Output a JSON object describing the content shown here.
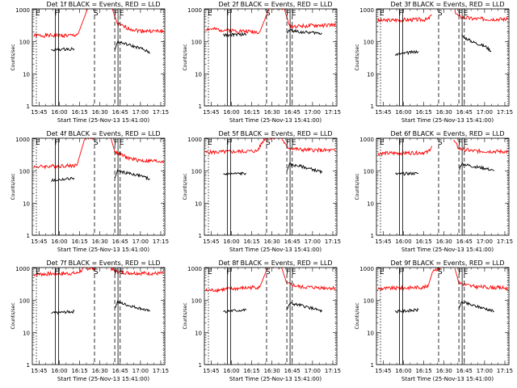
{
  "chart_data": [
    {
      "type": "line",
      "title": "Det 1f BLACK = Events, RED = LLD",
      "xlabel": "Start Time (25-Nov-13 15:41:00)",
      "ylabel": "Counts/sec",
      "xticks": [
        "15:45",
        "16:00",
        "16:15",
        "16:30",
        "16:45",
        "17:00",
        "17:15"
      ],
      "yticks": [
        "1",
        "10",
        "100",
        "1000"
      ],
      "xlim_min": [
        -1,
        97
      ],
      "ylim": [
        1,
        1000
      ],
      "yscale": "log",
      "markers": [
        "E",
        "F",
        "S",
        "F",
        "E"
      ],
      "series": [
        {
          "color": "#ff0000",
          "segments": [
            {
              "x": [
                0,
                30
              ],
              "y": [
                155,
                155
              ],
              "x_label": [
                "15:41",
                "16:11"
              ]
            },
            {
              "x": [
                30,
                33,
                40,
                46
              ],
              "y": [
                155,
                180,
                1100,
                1100
              ]
            },
            {
              "x": [
                58,
                62,
                70,
                78,
                96
              ],
              "y": [
                1100,
                350,
                260,
                220,
                210
              ]
            }
          ]
        },
        {
          "color": "#000000",
          "segments": [
            {
              "x": [
                13,
                30
              ],
              "y": [
                55,
                60
              ]
            },
            {
              "x": [
                60,
                62,
                70,
                80,
                86
              ],
              "y": [
                55,
                100,
                80,
                60,
                45
              ]
            }
          ]
        }
      ]
    },
    {
      "type": "line",
      "title": "Det 2f BLACK = Events, RED = LLD",
      "xlabel": "Start Time (25-Nov-13 15:41:00)",
      "ylabel": "Counts/sec",
      "xticks": [
        "15:45",
        "16:00",
        "16:15",
        "16:30",
        "16:45",
        "17:00",
        "17:15"
      ],
      "yticks": [
        "1",
        "10",
        "100",
        "1000"
      ],
      "xlim_min": [
        -1,
        97
      ],
      "ylim": [
        1,
        1000
      ],
      "yscale": "log",
      "markers": [
        "E",
        "F",
        "S",
        "F",
        "E"
      ],
      "series": [
        {
          "color": "#ff0000",
          "segments": [
            {
              "x": [
                0,
                40,
                47,
                58,
                62,
                96
              ],
              "y": [
                250,
                200,
                1100,
                1100,
                300,
                330
              ]
            }
          ]
        },
        {
          "color": "#000000",
          "segments": [
            {
              "x": [
                13,
                30
              ],
              "y": [
                160,
                170
              ]
            },
            {
              "x": [
                60,
                62,
                70,
                80,
                86
              ],
              "y": [
                180,
                230,
                200,
                190,
                180
              ]
            }
          ]
        }
      ]
    },
    {
      "type": "line",
      "title": "Det 3f BLACK = Events, RED = LLD",
      "xlabel": "Start Time (25-Nov-13 15:41:00)",
      "ylabel": "Counts/sec",
      "xticks": [
        "15:45",
        "16:00",
        "16:15",
        "16:30",
        "16:45",
        "17:00",
        "17:15"
      ],
      "yticks": [
        "1",
        "10",
        "100",
        "1000"
      ],
      "xlim_min": [
        -1,
        97
      ],
      "ylim": [
        1,
        1000
      ],
      "yscale": "log",
      "markers": [
        "E",
        "F",
        "S",
        "F",
        "E"
      ],
      "series": [
        {
          "color": "#ff0000",
          "segments": [
            {
              "x": [
                0,
                20,
                37,
                40
              ],
              "y": [
                450,
                480,
                490,
                700
              ]
            },
            {
              "x": [
                57,
                60,
                70,
                96
              ],
              "y": [
                900,
                600,
                520,
                500
              ]
            }
          ]
        },
        {
          "color": "#000000",
          "segments": [
            {
              "x": [
                13,
                30
              ],
              "y": [
                40,
                50
              ]
            },
            {
              "x": [
                62,
                70,
                80,
                84
              ],
              "y": [
                150,
                100,
                70,
                50
              ]
            }
          ]
        }
      ]
    },
    {
      "type": "line",
      "title": "Det 4f BLACK = Events, RED = LLD",
      "xlabel": "Start Time (25-Nov-13 15:41:00)",
      "ylabel": "Counts/sec",
      "xticks": [
        "15:45",
        "16:00",
        "16:15",
        "16:30",
        "16:45",
        "17:00",
        "17:15"
      ],
      "yticks": [
        "1",
        "10",
        "100",
        "1000"
      ],
      "xlim_min": [
        -1,
        97
      ],
      "ylim": [
        1,
        1000
      ],
      "yscale": "log",
      "markers": [
        "E",
        "F",
        "S",
        "F",
        "E"
      ],
      "series": [
        {
          "color": "#ff0000",
          "segments": [
            {
              "x": [
                0,
                32,
                38,
                46
              ],
              "y": [
                135,
                150,
                1100,
                1100
              ]
            },
            {
              "x": [
                57,
                60,
                70,
                80,
                96
              ],
              "y": [
                1100,
                400,
                250,
                210,
                200
              ]
            }
          ]
        },
        {
          "color": "#000000",
          "segments": [
            {
              "x": [
                13,
                30
              ],
              "y": [
                50,
                60
              ]
            },
            {
              "x": [
                60,
                62,
                70,
                80,
                86
              ],
              "y": [
                60,
                100,
                85,
                70,
                55
              ]
            }
          ]
        }
      ]
    },
    {
      "type": "line",
      "title": "Det 5f BLACK = Events, RED = LLD",
      "xlabel": "Start Time (25-Nov-13 15:41:00)",
      "ylabel": "Counts/sec",
      "xticks": [
        "15:45",
        "16:00",
        "16:15",
        "16:30",
        "16:45",
        "17:00",
        "17:15"
      ],
      "yticks": [
        "1",
        "10",
        "100",
        "1000"
      ],
      "xlim_min": [
        -1,
        97
      ],
      "ylim": [
        1,
        1000
      ],
      "yscale": "log",
      "markers": [
        "E",
        "F",
        "S",
        "F",
        "E"
      ],
      "series": [
        {
          "color": "#ff0000",
          "segments": [
            {
              "x": [
                0,
                38,
                44,
                56
              ],
              "y": [
                380,
                420,
                1100,
                1100
              ]
            },
            {
              "x": [
                56,
                60,
                70,
                96
              ],
              "y": [
                1100,
                550,
                460,
                430
              ]
            }
          ]
        },
        {
          "color": "#000000",
          "segments": [
            {
              "x": [
                13,
                30
              ],
              "y": [
                80,
                85
              ]
            },
            {
              "x": [
                60,
                62,
                70,
                80,
                86
              ],
              "y": [
                100,
                160,
                140,
                110,
                90
              ]
            }
          ]
        }
      ]
    },
    {
      "type": "line",
      "title": "Det 6f BLACK = Events, RED = LLD",
      "xlabel": "Start Time (25-Nov-13 15:41:00)",
      "ylabel": "Counts/sec",
      "xticks": [
        "15:45",
        "16:00",
        "16:15",
        "16:30",
        "16:45",
        "17:00",
        "17:15"
      ],
      "yticks": [
        "1",
        "10",
        "100",
        "1000"
      ],
      "xlim_min": [
        -1,
        97
      ],
      "ylim": [
        1,
        1000
      ],
      "yscale": "log",
      "markers": [
        "E",
        "F",
        "S",
        "F",
        "E"
      ],
      "series": [
        {
          "color": "#ff0000",
          "segments": [
            {
              "x": [
                0,
                37,
                40
              ],
              "y": [
                350,
                380,
                600
              ]
            },
            {
              "x": [
                56,
                60,
                70,
                96
              ],
              "y": [
                900,
                500,
                420,
                400
              ]
            }
          ]
        },
        {
          "color": "#000000",
          "segments": [
            {
              "x": [
                13,
                30
              ],
              "y": [
                80,
                85
              ]
            },
            {
              "x": [
                60,
                62,
                70,
                80,
                86
              ],
              "y": [
                110,
                170,
                140,
                120,
                100
              ]
            }
          ]
        }
      ]
    },
    {
      "type": "line",
      "title": "Det 7f BLACK = Events, RED = LLD",
      "xlabel": "Start Time (25-Nov-13 15:41:00)",
      "ylabel": "Counts/sec",
      "xticks": [
        "15:45",
        "16:00",
        "16:15",
        "16:30",
        "16:45",
        "17:00",
        "17:15"
      ],
      "yticks": [
        "1",
        "10",
        "100",
        "1000"
      ],
      "xlim_min": [
        -1,
        97
      ],
      "ylim": [
        1,
        1000
      ],
      "yscale": "log",
      "markers": [
        "E",
        "F",
        "S",
        "F",
        "E"
      ],
      "series": [
        {
          "color": "#ff0000",
          "segments": [
            {
              "x": [
                0,
                32,
                38,
                46
              ],
              "y": [
                650,
                700,
                1000,
                1000
              ]
            },
            {
              "x": [
                57,
                60,
                70,
                96
              ],
              "y": [
                1000,
                800,
                720,
                680
              ]
            }
          ]
        },
        {
          "color": "#000000",
          "segments": [
            {
              "x": [
                13,
                30
              ],
              "y": [
                40,
                45
              ]
            },
            {
              "x": [
                60,
                62,
                70,
                80,
                86
              ],
              "y": [
                60,
                90,
                70,
                55,
                45
              ]
            }
          ]
        }
      ]
    },
    {
      "type": "line",
      "title": "Det 8f BLACK = Events, RED = LLD",
      "xlabel": "Start Time (25-Nov-13 15:41:00)",
      "ylabel": "Counts/sec",
      "xticks": [
        "15:45",
        "16:00",
        "16:15",
        "16:30",
        "16:45",
        "17:00",
        "17:15"
      ],
      "yticks": [
        "1",
        "10",
        "100",
        "1000"
      ],
      "xlim_min": [
        -1,
        97
      ],
      "ylim": [
        1,
        1000
      ],
      "yscale": "log",
      "markers": [
        "E",
        "F",
        "S",
        "F",
        "E"
      ],
      "series": [
        {
          "color": "#ff0000",
          "segments": [
            {
              "x": [
                0,
                40,
                46,
                56
              ],
              "y": [
                200,
                260,
                1100,
                1100
              ]
            },
            {
              "x": [
                56,
                60,
                70,
                96
              ],
              "y": [
                1100,
                330,
                260,
                240
              ]
            }
          ]
        },
        {
          "color": "#000000",
          "segments": [
            {
              "x": [
                13,
                30
              ],
              "y": [
                45,
                50
              ]
            },
            {
              "x": [
                60,
                62,
                70,
                80,
                86
              ],
              "y": [
                50,
                80,
                70,
                55,
                45
              ]
            }
          ]
        }
      ]
    },
    {
      "type": "line",
      "title": "Det 9f BLACK = Events, RED = LLD",
      "xlabel": "Start Time (25-Nov-13 15:41:00)",
      "ylabel": "Counts/sec",
      "xticks": [
        "15:45",
        "16:00",
        "16:15",
        "16:30",
        "16:45",
        "17:00",
        "17:15"
      ],
      "yticks": [
        "1",
        "10",
        "100",
        "1000"
      ],
      "xlim_min": [
        -1,
        97
      ],
      "ylim": [
        1,
        1000
      ],
      "yscale": "log",
      "markers": [
        "E",
        "F",
        "S",
        "F",
        "E"
      ],
      "series": [
        {
          "color": "#ff0000",
          "segments": [
            {
              "x": [
                0,
                37,
                41,
                46
              ],
              "y": [
                230,
                260,
                900,
                1000
              ]
            },
            {
              "x": [
                57,
                60,
                70,
                96
              ],
              "y": [
                1000,
                350,
                270,
                240
              ]
            }
          ]
        },
        {
          "color": "#000000",
          "segments": [
            {
              "x": [
                13,
                30
              ],
              "y": [
                45,
                50
              ]
            },
            {
              "x": [
                60,
                62,
                70,
                80,
                86
              ],
              "y": [
                55,
                90,
                70,
                55,
                45
              ]
            }
          ]
        }
      ]
    }
  ]
}
